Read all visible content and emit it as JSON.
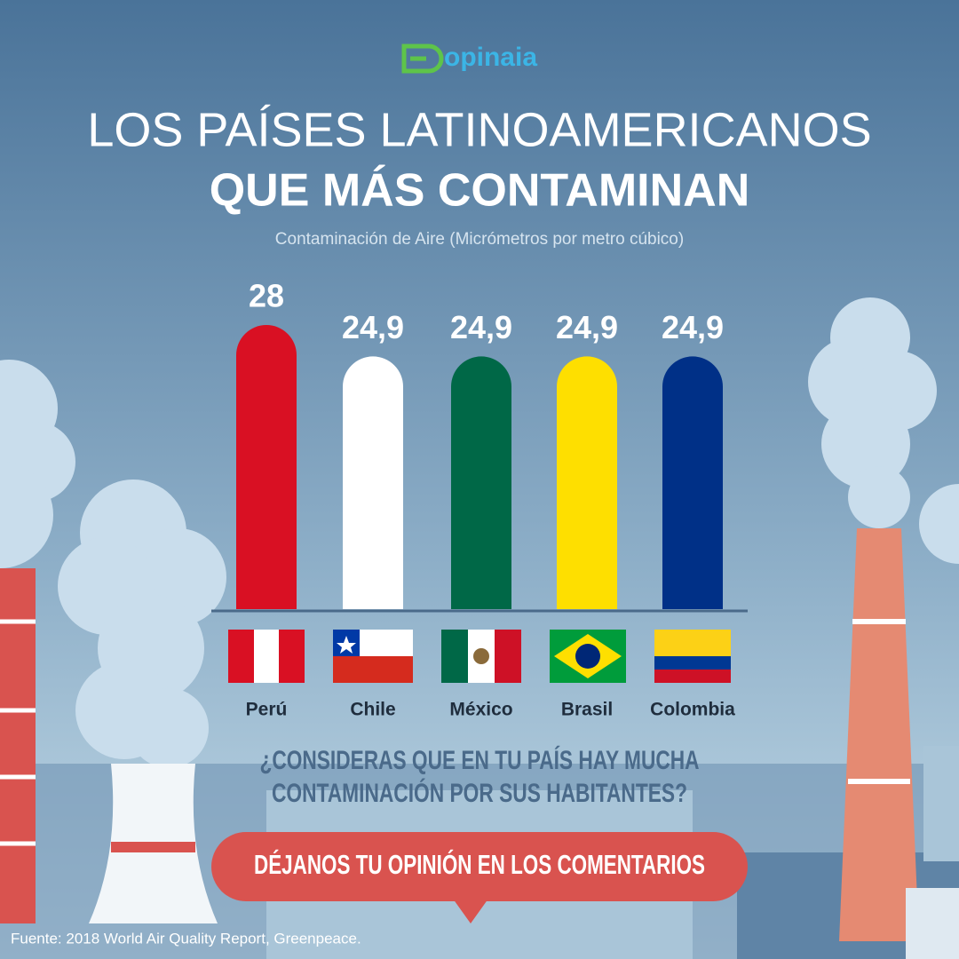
{
  "brand": "opinaia",
  "chart_data": {
    "type": "bar",
    "title": [
      "LOS PAÍSES LATINOAMERICANOS",
      "QUE MÁS CONTAMINAN"
    ],
    "subtitle": "Contaminación de Aire (Micrómetros por metro cúbico)",
    "categories": [
      "Perú",
      "Chile",
      "México",
      "Brasil",
      "Colombia"
    ],
    "values": [
      28,
      24.9,
      24.9,
      24.9,
      24.9
    ],
    "value_labels": [
      "28",
      "24,9",
      "24,9",
      "24,9",
      "24,9"
    ],
    "colors": [
      "#d91023",
      "#ffffff",
      "#006847",
      "#fedf00",
      "#003087"
    ]
  },
  "question": [
    "¿CONSIDERAS QUE EN TU PAÍS HAY MUCHA",
    "CONTAMINACIÓN POR SUS HABITANTES?"
  ],
  "cta": "DÉJANOS TU OPINIÓN EN LOS COMENTARIOS",
  "source": "Fuente: 2018 World Air Quality Report, Greenpeace."
}
